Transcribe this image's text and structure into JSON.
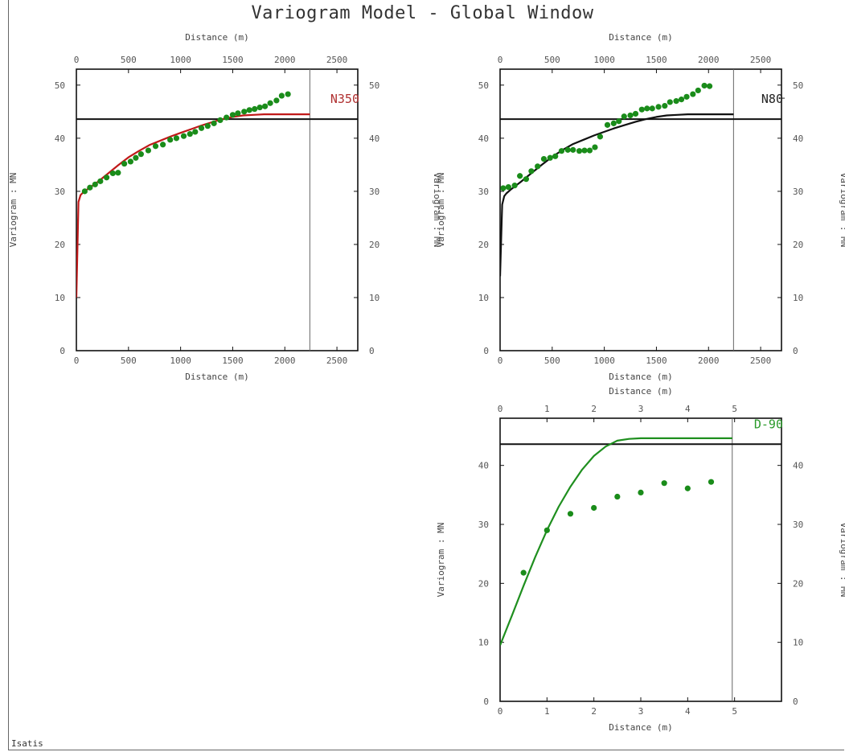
{
  "title": "Variogram Model - Global Window",
  "footer": "Isatis",
  "colors": {
    "points": "#1a8c1a",
    "sill": "#111111"
  },
  "chart_data": [
    {
      "type": "line",
      "direction_label": "N350",
      "direction_color": "#b03030",
      "model_color": "#c01818",
      "xlabel_top": "Distance (m)",
      "xlabel_bottom": "Distance (m)",
      "ylabel_left": "Variogram : MN",
      "ylabel_right": "Variogram : MN",
      "xlim": [
        0,
        2700
      ],
      "ylim": [
        0,
        53
      ],
      "xticks": [
        "0",
        "500",
        "1000",
        "1500",
        "2000",
        "2500"
      ],
      "yticks": [
        "0",
        "10",
        "20",
        "30",
        "40",
        "50"
      ],
      "sill": 43.6,
      "vline_x": 2240,
      "experimental": {
        "x": [
          80,
          130,
          180,
          230,
          290,
          350,
          400,
          460,
          520,
          570,
          620,
          690,
          760,
          830,
          900,
          960,
          1030,
          1090,
          1140,
          1200,
          1260,
          1320,
          1380,
          1440,
          1500,
          1550,
          1610,
          1660,
          1710,
          1760,
          1810,
          1860,
          1920,
          1970,
          2030
        ],
        "y": [
          30.0,
          30.7,
          31.3,
          31.9,
          32.6,
          33.4,
          33.5,
          35.2,
          35.6,
          36.3,
          37.0,
          37.7,
          38.5,
          38.8,
          39.7,
          40.0,
          40.4,
          40.8,
          41.2,
          41.9,
          42.3,
          42.8,
          43.4,
          43.9,
          44.4,
          44.7,
          45.0,
          45.3,
          45.5,
          45.8,
          46.0,
          46.6,
          47.1,
          48.0,
          48.3
        ]
      },
      "model": {
        "x": [
          0,
          20,
          40,
          60,
          100,
          200,
          300,
          400,
          500,
          600,
          700,
          800,
          900,
          1000,
          1100,
          1200,
          1300,
          1400,
          1500,
          1600,
          1700,
          1800,
          1900,
          2000,
          2100,
          2200,
          2240
        ],
        "y": [
          10.0,
          28.0,
          29.3,
          29.7,
          30.3,
          31.7,
          33.3,
          34.9,
          36.4,
          37.6,
          38.7,
          39.5,
          40.3,
          41.0,
          41.7,
          42.4,
          43.0,
          43.6,
          44.0,
          44.3,
          44.4,
          44.5,
          44.5,
          44.5,
          44.5,
          44.5,
          44.5
        ]
      }
    },
    {
      "type": "line",
      "direction_label": "N80",
      "direction_color": "#222222",
      "model_color": "#111111",
      "xlabel_top": "Distance (m)",
      "xlabel_bottom": "Distance (m)",
      "ylabel_left": "Variogram : MN",
      "ylabel_right": "Variogram : MN",
      "xlim": [
        0,
        2700
      ],
      "ylim": [
        0,
        53
      ],
      "xticks": [
        "0",
        "500",
        "1000",
        "1500",
        "2000",
        "2500"
      ],
      "yticks": [
        "0",
        "10",
        "20",
        "30",
        "40",
        "50"
      ],
      "sill": 43.6,
      "vline_x": 2240,
      "experimental": {
        "x": [
          30,
          80,
          140,
          190,
          250,
          300,
          360,
          420,
          480,
          530,
          590,
          650,
          700,
          760,
          810,
          860,
          910,
          960,
          1030,
          1090,
          1140,
          1190,
          1250,
          1300,
          1360,
          1410,
          1460,
          1520,
          1580,
          1630,
          1690,
          1740,
          1790,
          1850,
          1900,
          1960,
          2010
        ],
        "y": [
          30.6,
          30.8,
          31.1,
          32.9,
          32.3,
          33.8,
          34.7,
          36.1,
          36.3,
          36.6,
          37.6,
          37.8,
          37.8,
          37.6,
          37.7,
          37.7,
          38.3,
          40.3,
          42.5,
          42.8,
          43.2,
          44.1,
          44.3,
          44.6,
          45.4,
          45.6,
          45.6,
          45.9,
          46.1,
          46.8,
          47.0,
          47.3,
          47.8,
          48.3,
          49.0,
          49.9,
          49.8
        ]
      },
      "model": {
        "x": [
          0,
          20,
          40,
          60,
          100,
          200,
          300,
          400,
          500,
          600,
          700,
          800,
          900,
          1000,
          1100,
          1200,
          1300,
          1400,
          1500,
          1600,
          1700,
          1800,
          1900,
          2000,
          2100,
          2200,
          2240
        ],
        "y": [
          14.0,
          27.5,
          29.1,
          29.6,
          30.3,
          31.8,
          33.4,
          35.0,
          36.5,
          37.8,
          38.9,
          39.7,
          40.5,
          41.2,
          41.9,
          42.5,
          43.1,
          43.6,
          44.0,
          44.3,
          44.4,
          44.5,
          44.5,
          44.5,
          44.5,
          44.5,
          44.5
        ]
      }
    },
    {
      "type": "line",
      "direction_label": "D-90",
      "direction_color": "#2a9a2a",
      "model_color": "#1f8f1f",
      "xlabel_top": "Distance (m)",
      "xlabel_bottom": "Distance (m)",
      "ylabel_left": "Variogram : MN",
      "ylabel_right": "Variogram : MN",
      "xlim": [
        0,
        6
      ],
      "ylim": [
        0,
        48
      ],
      "xticks": [
        "0",
        "1",
        "2",
        "3",
        "4",
        "5"
      ],
      "yticks": [
        "0",
        "10",
        "20",
        "30",
        "40"
      ],
      "sill": 43.6,
      "vline_x": 4.95,
      "experimental": {
        "x": [
          0.5,
          1.0,
          1.5,
          2.0,
          2.5,
          3.0,
          3.5,
          4.0,
          4.5
        ],
        "y": [
          21.8,
          29.0,
          31.8,
          32.8,
          34.7,
          35.4,
          37.0,
          36.1,
          37.2
        ]
      },
      "model": {
        "x": [
          0,
          0.25,
          0.5,
          0.75,
          1.0,
          1.25,
          1.5,
          1.75,
          2.0,
          2.25,
          2.5,
          2.75,
          3.0,
          3.5,
          4.0,
          4.5,
          4.95
        ],
        "y": [
          9.5,
          14.5,
          19.6,
          24.5,
          29.0,
          33.0,
          36.4,
          39.3,
          41.6,
          43.2,
          44.2,
          44.5,
          44.6,
          44.6,
          44.6,
          44.6,
          44.6
        ]
      }
    }
  ]
}
